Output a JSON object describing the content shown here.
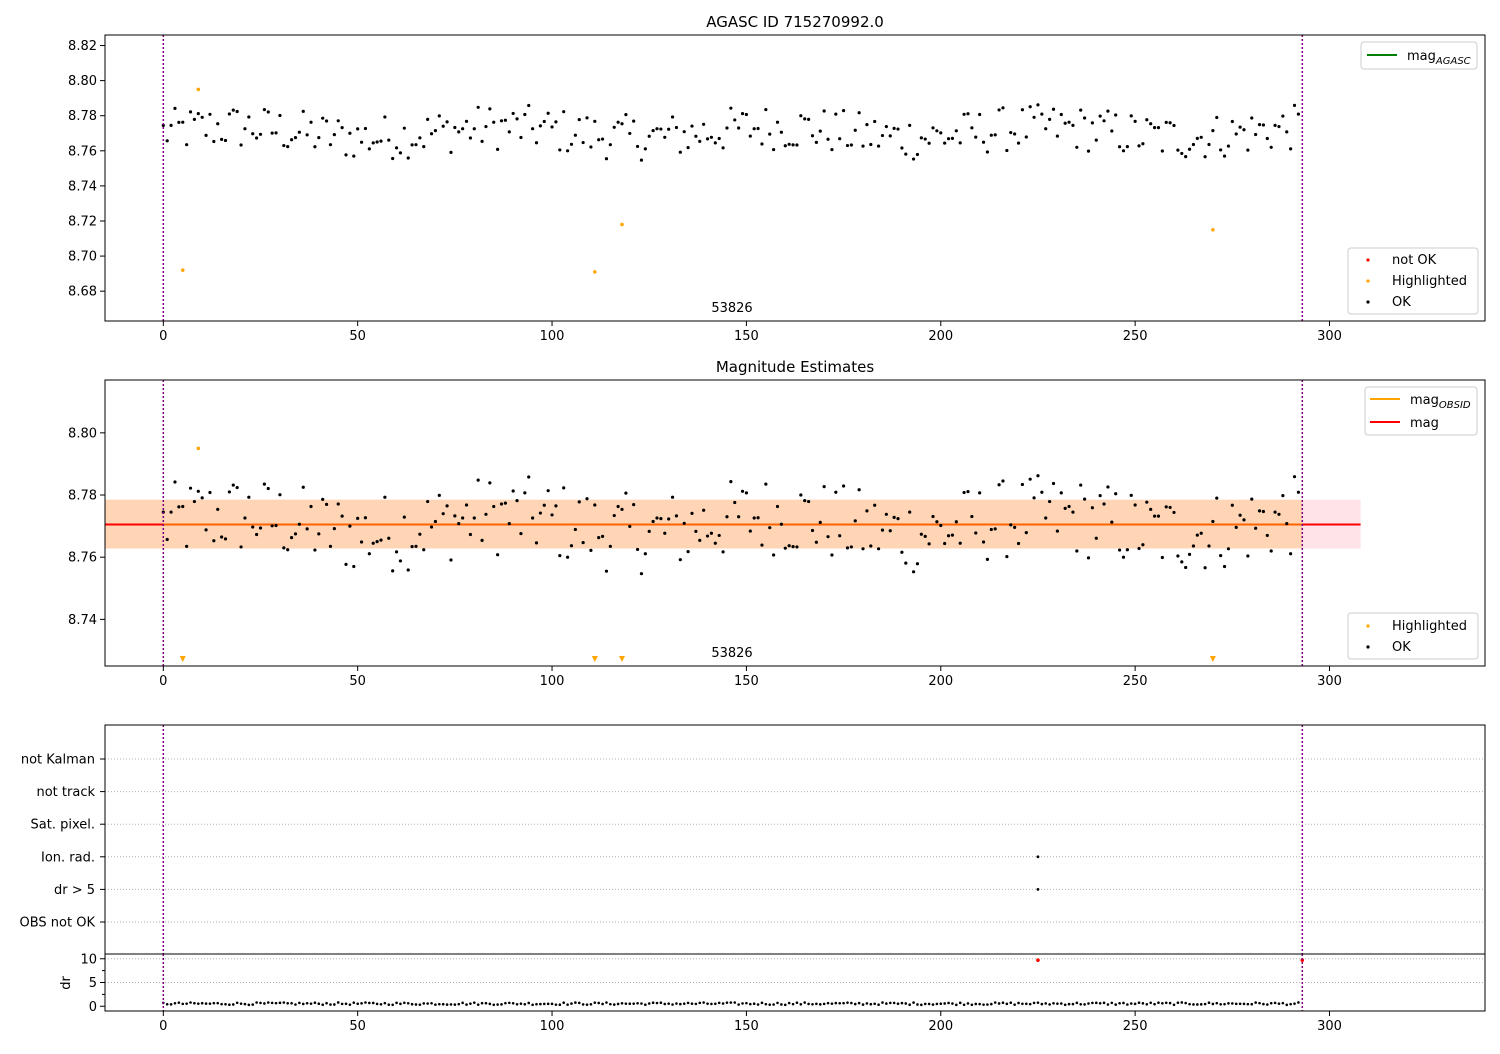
{
  "chart_data": [
    {
      "type": "scatter",
      "title": "AGASC ID 715270992.0",
      "xlabel": "",
      "ylabel": "",
      "xlim": [
        -15,
        340
      ],
      "ylim": [
        8.663,
        8.826
      ],
      "xticks": [
        0,
        50,
        100,
        150,
        200,
        250,
        300
      ],
      "yticks": [
        8.68,
        8.7,
        8.72,
        8.74,
        8.76,
        8.78,
        8.8,
        8.82
      ],
      "ytick_decimals": 2,
      "vlines": [
        0,
        293
      ],
      "annotation": "53826",
      "legend_top": {
        "placement": "top-right",
        "entries": [
          {
            "label": "mag",
            "sub": "AGASC",
            "kind": "line",
            "color": "#008000"
          }
        ]
      },
      "legend_bottom": {
        "placement": "lower-right",
        "entries": [
          {
            "label": "not OK",
            "kind": "dot",
            "color": "#ff0000"
          },
          {
            "label": "Highlighted",
            "kind": "dot",
            "color": "#ffa500"
          },
          {
            "label": "OK",
            "kind": "dot",
            "color": "#000000"
          }
        ]
      },
      "highlighted": [
        [
          5,
          8.692
        ],
        [
          9,
          8.795
        ],
        [
          111,
          8.691
        ],
        [
          118,
          8.718
        ],
        [
          270,
          8.715
        ]
      ]
    },
    {
      "type": "scatter",
      "title": "Magnitude Estimates",
      "xlabel": "",
      "ylabel": "",
      "xlim": [
        -15,
        340
      ],
      "ylim": [
        8.725,
        8.817
      ],
      "xticks": [
        0,
        50,
        100,
        150,
        200,
        250,
        300
      ],
      "yticks": [
        8.74,
        8.76,
        8.78,
        8.8
      ],
      "ytick_decimals": 2,
      "vlines": [
        0,
        293
      ],
      "annotation": "53826",
      "mag_line": 8.7705,
      "band_outer": [
        8.7628,
        8.7785
      ],
      "band_inner": [
        8.7628,
        8.7785
      ],
      "band_x": [
        -15,
        308
      ],
      "legend_top": {
        "placement": "top-right",
        "entries": [
          {
            "label": "mag",
            "sub": "OBSID",
            "kind": "line",
            "color": "#ffa500"
          },
          {
            "label": "mag",
            "sub": "",
            "kind": "line",
            "color": "#ff0000"
          }
        ]
      },
      "legend_bottom": {
        "placement": "lower-right",
        "entries": [
          {
            "label": "Highlighted",
            "kind": "dot",
            "color": "#ffa500"
          },
          {
            "label": "OK",
            "kind": "dot",
            "color": "#000000"
          }
        ]
      },
      "highlighted": [
        [
          9,
          8.795
        ]
      ],
      "offscale_markers": [
        5,
        111,
        118,
        270
      ]
    },
    {
      "type": "scatter",
      "title": "",
      "xlim": [
        -15,
        340
      ],
      "categories": [
        "not Kalman",
        "not track",
        "Sat. pixel.",
        "Ion. rad.",
        "dr > 5",
        "OBS not OK"
      ],
      "vlines": [
        0,
        293
      ],
      "flag_points": [
        {
          "category": "Ion. rad.",
          "x": 225
        },
        {
          "category": "dr > 5",
          "x": 225
        }
      ]
    },
    {
      "type": "scatter",
      "title": "",
      "xlim": [
        -15,
        340
      ],
      "ylim": [
        -1,
        11
      ],
      "xticks": [
        0,
        50,
        100,
        150,
        200,
        250,
        300
      ],
      "yticks": [
        0,
        5,
        10
      ],
      "ylabel": "dr",
      "vlines": [
        0,
        293
      ],
      "red_points": [
        [
          225,
          9.7
        ],
        [
          293,
          9.7
        ]
      ]
    }
  ]
}
